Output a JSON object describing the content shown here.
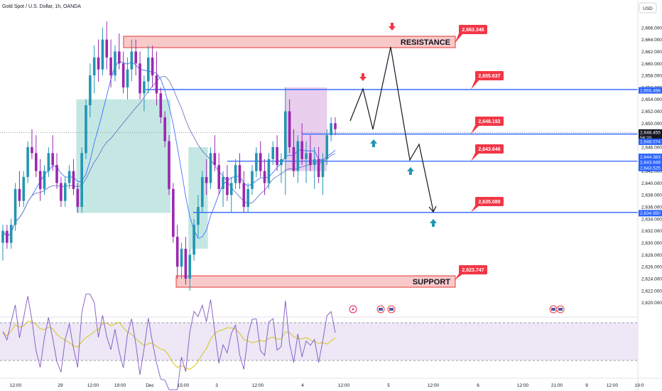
{
  "header": {
    "symbol": "Gold Spot / U.S. Dollar, 1h, OANDA",
    "currency": "USD"
  },
  "chart_data": {
    "type": "candlestick",
    "price_range": [
      2619,
      2668
    ],
    "price_ticks": [
      "2,666.000",
      "2,664.000",
      "2,662.000",
      "2,660.000",
      "2,658.000",
      "2,656.000",
      "2,654.000",
      "2,652.000",
      "2,650.000",
      "2,648.000",
      "2,646.000",
      "2,644.000",
      "2,642.000",
      "2,640.000",
      "2,638.000",
      "2,636.000",
      "2,634.000",
      "2,632.000",
      "2,630.000",
      "2,628.000",
      "2,626.000",
      "2,624.000",
      "2,622.000",
      "2,620.000"
    ],
    "time_ticks": [
      "12:00",
      "29",
      "12:00",
      "19:00",
      "Dec",
      "15:00",
      "3",
      "12:00",
      "4",
      "12:00",
      "5",
      "12:00",
      "6",
      "12:00",
      "21:00",
      "9",
      "12:00",
      "19:0"
    ],
    "levels": [
      {
        "name": "resistance",
        "price": 2663.346,
        "label": "2,663.346",
        "zone_text": "RESISTANCE"
      },
      {
        "name": "level-1",
        "price": 2655.637,
        "label": "2,655.637"
      },
      {
        "name": "level-2",
        "price": 2648.192,
        "label": "2,648.192"
      },
      {
        "name": "level-3",
        "price": 2643.646,
        "label": "2,643.646"
      },
      {
        "name": "level-4",
        "price": 2635.08,
        "label": "2,635.080"
      },
      {
        "name": "support",
        "price": 2623.747,
        "label": "2,623.747",
        "zone_text": "SUPPORT"
      }
    ],
    "axis_boxes": [
      {
        "label": "2,655.498",
        "price": 2655.5,
        "color": "#2962ff"
      },
      {
        "label": "2,648.455",
        "price": 2648.455,
        "color": "#131722"
      },
      {
        "label": "56:20",
        "price": 2647.6,
        "color": "#131722"
      },
      {
        "label": "2,648.074",
        "price": 2646.9,
        "color": "#2962ff"
      },
      {
        "label": "2,644.383",
        "price": 2644.38,
        "color": "#2962ff"
      },
      {
        "label": "2,643.949",
        "price": 2643.45,
        "color": "#2962ff"
      },
      {
        "label": "2,643.525",
        "price": 2642.5,
        "color": "#2962ff"
      },
      {
        "label": "2,634.950",
        "price": 2634.95,
        "color": "#2962ff"
      }
    ],
    "candles": [
      [
        2630,
        2633,
        2627,
        2632
      ],
      [
        2632,
        2633,
        2629,
        2630
      ],
      [
        2630,
        2634,
        2629,
        2633
      ],
      [
        2633,
        2640,
        2632,
        2639
      ],
      [
        2639,
        2642,
        2636,
        2637
      ],
      [
        2637,
        2642,
        2636,
        2641
      ],
      [
        2641,
        2647,
        2640,
        2646
      ],
      [
        2646,
        2649,
        2644,
        2645
      ],
      [
        2645,
        2648,
        2641,
        2642
      ],
      [
        2642,
        2644,
        2637,
        2639
      ],
      [
        2639,
        2643,
        2638,
        2642
      ],
      [
        2642,
        2646,
        2641,
        2645
      ],
      [
        2645,
        2648,
        2642,
        2643
      ],
      [
        2643,
        2645,
        2639,
        2640
      ],
      [
        2640,
        2641,
        2636,
        2637
      ],
      [
        2637,
        2641,
        2636,
        2640
      ],
      [
        2640,
        2643,
        2639,
        2642
      ],
      [
        2642,
        2644,
        2638,
        2639
      ],
      [
        2639,
        2640,
        2635,
        2636
      ],
      [
        2636,
        2646,
        2635,
        2645
      ],
      [
        2645,
        2654,
        2644,
        2653
      ],
      [
        2653,
        2660,
        2651,
        2658
      ],
      [
        2658,
        2663,
        2655,
        2661
      ],
      [
        2661,
        2664,
        2657,
        2659
      ],
      [
        2659,
        2666,
        2658,
        2664
      ],
      [
        2664,
        2667,
        2659,
        2661
      ],
      [
        2661,
        2664,
        2656,
        2658
      ],
      [
        2658,
        2663,
        2657,
        2662
      ],
      [
        2662,
        2665,
        2659,
        2660
      ],
      [
        2660,
        2662,
        2655,
        2656
      ],
      [
        2656,
        2661,
        2654,
        2659
      ],
      [
        2659,
        2664,
        2657,
        2662
      ],
      [
        2662,
        2664,
        2658,
        2660
      ],
      [
        2660,
        2662,
        2654,
        2655
      ],
      [
        2655,
        2658,
        2652,
        2657
      ],
      [
        2657,
        2663,
        2655,
        2661
      ],
      [
        2661,
        2663,
        2656,
        2658
      ],
      [
        2658,
        2662,
        2653,
        2655
      ],
      [
        2655,
        2656,
        2650,
        2651
      ],
      [
        2651,
        2652,
        2646,
        2647
      ],
      [
        2647,
        2648,
        2638,
        2639
      ],
      [
        2639,
        2640,
        2630,
        2631
      ],
      [
        2631,
        2633,
        2624,
        2626
      ],
      [
        2626,
        2630,
        2624,
        2629
      ],
      [
        2629,
        2631,
        2623,
        2624
      ],
      [
        2624,
        2629,
        2622,
        2628
      ],
      [
        2628,
        2634,
        2627,
        2633
      ],
      [
        2633,
        2638,
        2631,
        2636
      ],
      [
        2636,
        2642,
        2635,
        2641
      ],
      [
        2641,
        2644,
        2638,
        2640
      ],
      [
        2640,
        2646,
        2639,
        2645
      ],
      [
        2645,
        2648,
        2642,
        2643
      ],
      [
        2643,
        2645,
        2638,
        2639
      ],
      [
        2639,
        2642,
        2636,
        2641
      ],
      [
        2641,
        2643,
        2637,
        2638
      ],
      [
        2638,
        2641,
        2635,
        2640
      ],
      [
        2640,
        2644,
        2639,
        2643
      ],
      [
        2643,
        2645,
        2639,
        2640
      ],
      [
        2640,
        2642,
        2635,
        2636
      ],
      [
        2636,
        2640,
        2635,
        2639
      ],
      [
        2639,
        2643,
        2638,
        2642
      ],
      [
        2642,
        2646,
        2641,
        2645
      ],
      [
        2645,
        2647,
        2641,
        2642
      ],
      [
        2642,
        2644,
        2638,
        2640
      ],
      [
        2640,
        2645,
        2639,
        2644
      ],
      [
        2644,
        2647,
        2643,
        2646
      ],
      [
        2646,
        2648,
        2642,
        2643
      ],
      [
        2643,
        2645,
        2640,
        2644
      ],
      [
        2644,
        2656,
        2638,
        2652
      ],
      [
        2652,
        2654,
        2645,
        2646
      ],
      [
        2646,
        2649,
        2641,
        2642
      ],
      [
        2642,
        2648,
        2640,
        2647
      ],
      [
        2647,
        2650,
        2643,
        2644
      ],
      [
        2644,
        2647,
        2640,
        2645
      ],
      [
        2645,
        2648,
        2642,
        2643
      ],
      [
        2643,
        2646,
        2639,
        2644
      ],
      [
        2644,
        2646,
        2640,
        2641
      ],
      [
        2641,
        2645,
        2638,
        2644
      ],
      [
        2644,
        2649,
        2643,
        2648
      ],
      [
        2648,
        2651,
        2647,
        2650
      ],
      [
        2650,
        2651,
        2648,
        2649
      ]
    ]
  },
  "rsi": {
    "upper": "60.00",
    "lower": "40.00",
    "rsi_value": "55.57",
    "ma_value": "52.22"
  }
}
